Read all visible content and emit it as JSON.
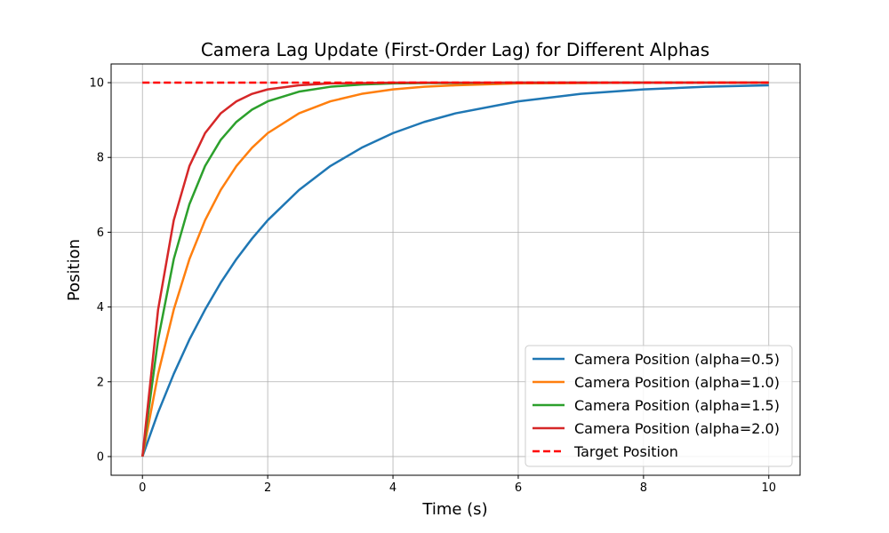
{
  "chart_data": {
    "type": "line",
    "title": "Camera Lag Update (First-Order Lag) for Different Alphas",
    "xlabel": "Time (s)",
    "ylabel": "Position",
    "xlim": [
      -0.5,
      10.5
    ],
    "ylim": [
      -0.5,
      10.5
    ],
    "xticks": [
      0,
      2,
      4,
      6,
      8,
      10
    ],
    "yticks": [
      0,
      2,
      4,
      6,
      8,
      10
    ],
    "grid": true,
    "legend_position": "lower-right",
    "x": [
      0,
      0.25,
      0.5,
      0.75,
      1,
      1.25,
      1.5,
      1.75,
      2,
      2.5,
      3,
      3.5,
      4,
      4.5,
      5,
      6,
      7,
      8,
      9,
      10
    ],
    "series": [
      {
        "name": "Camera Position (alpha=0.5)",
        "color": "#1f77b4",
        "style": "solid",
        "values": [
          0,
          1.18,
          2.21,
          3.13,
          3.93,
          4.65,
          5.28,
          5.83,
          6.32,
          7.13,
          7.77,
          8.26,
          8.65,
          8.95,
          9.18,
          9.5,
          9.7,
          9.82,
          9.89,
          9.93
        ]
      },
      {
        "name": "Camera Position (alpha=1.0)",
        "color": "#ff7f0e",
        "style": "solid",
        "values": [
          0,
          2.21,
          3.93,
          5.28,
          6.32,
          7.13,
          7.77,
          8.26,
          8.65,
          9.18,
          9.5,
          9.7,
          9.82,
          9.89,
          9.93,
          9.98,
          9.99,
          10.0,
          10.0,
          10.0
        ]
      },
      {
        "name": "Camera Position (alpha=1.5)",
        "color": "#2ca02c",
        "style": "solid",
        "values": [
          0,
          3.13,
          5.28,
          6.75,
          7.77,
          8.47,
          8.95,
          9.28,
          9.5,
          9.76,
          9.89,
          9.95,
          9.98,
          9.99,
          9.99,
          10.0,
          10.0,
          10.0,
          10.0,
          10.0
        ]
      },
      {
        "name": "Camera Position (alpha=2.0)",
        "color": "#d62728",
        "style": "solid",
        "values": [
          0,
          3.93,
          6.32,
          7.77,
          8.65,
          9.18,
          9.5,
          9.7,
          9.82,
          9.93,
          9.98,
          9.99,
          10.0,
          10.0,
          10.0,
          10.0,
          10.0,
          10.0,
          10.0,
          10.0
        ]
      },
      {
        "name": "Target Position",
        "color": "#ff0000",
        "style": "dashed",
        "values": [
          10,
          10,
          10,
          10,
          10,
          10,
          10,
          10,
          10,
          10,
          10,
          10,
          10,
          10,
          10,
          10,
          10,
          10,
          10,
          10
        ]
      }
    ]
  }
}
